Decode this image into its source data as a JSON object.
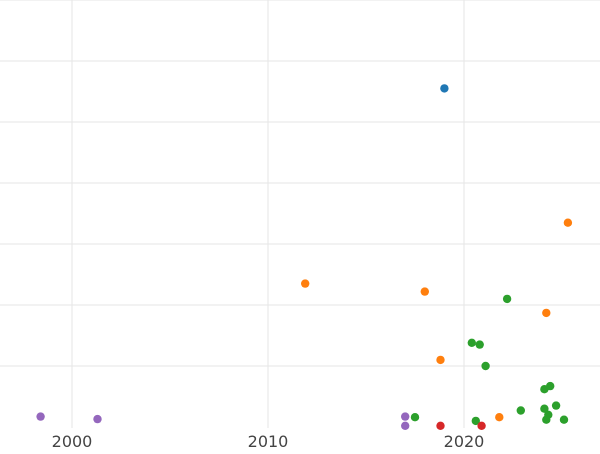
{
  "chart_data": {
    "type": "scatter",
    "title": "",
    "xlabel": "",
    "ylabel": "",
    "x_axis": {
      "tick_labels": [
        "2000",
        "2010",
        "2020"
      ],
      "tick_values": [
        2000,
        2010,
        2020
      ],
      "range": [
        1998.2,
        2026.7
      ]
    },
    "y_axis": {
      "tick_labels": [],
      "gridlines": 7,
      "range": [
        0,
        7
      ]
    },
    "grid": true,
    "legend": "none",
    "series": [
      {
        "color": "#1f77b4",
        "points": [
          [
            2019.0,
            5.55
          ]
        ]
      },
      {
        "color": "#ff7f0e",
        "points": [
          [
            2025.3,
            3.35
          ],
          [
            2011.9,
            2.35
          ],
          [
            2018.0,
            2.22
          ],
          [
            2024.2,
            1.87
          ],
          [
            2018.8,
            1.1
          ],
          [
            2021.8,
            0.16
          ]
        ]
      },
      {
        "color": "#2ca02c",
        "points": [
          [
            2022.2,
            2.1
          ],
          [
            2020.4,
            1.38
          ],
          [
            2020.8,
            1.35
          ],
          [
            2021.1,
            1.0
          ],
          [
            2024.1,
            0.62
          ],
          [
            2024.4,
            0.67
          ],
          [
            2024.7,
            0.35
          ],
          [
            2024.1,
            0.3
          ],
          [
            2022.9,
            0.27
          ],
          [
            2024.3,
            0.2
          ],
          [
            2017.5,
            0.16
          ],
          [
            2020.6,
            0.1
          ],
          [
            2024.2,
            0.12
          ],
          [
            2025.1,
            0.12
          ]
        ]
      },
      {
        "color": "#d62728",
        "points": [
          [
            2018.8,
            0.02
          ],
          [
            2020.9,
            0.02
          ]
        ]
      },
      {
        "color": "#9467bd",
        "points": [
          [
            1998.4,
            0.17
          ],
          [
            2001.3,
            0.13
          ],
          [
            2017.0,
            0.17
          ],
          [
            2017.0,
            0.02
          ]
        ]
      }
    ]
  }
}
